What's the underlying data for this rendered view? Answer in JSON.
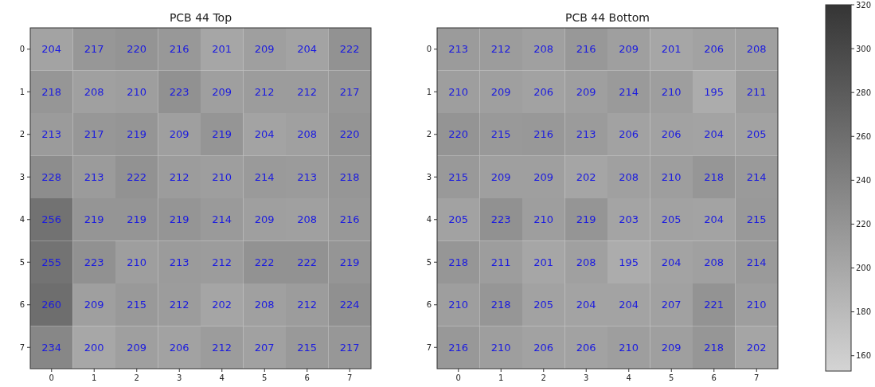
{
  "chart_data": [
    {
      "type": "heatmap",
      "title": "PCB 44 Top",
      "categories": [
        "0",
        "1",
        "2",
        "3",
        "4",
        "5",
        "6",
        "7"
      ],
      "y_categories": [
        "0",
        "1",
        "2",
        "3",
        "4",
        "5",
        "6",
        "7"
      ],
      "cells": [
        [
          204,
          217,
          220,
          216,
          201,
          209,
          204,
          222
        ],
        [
          218,
          208,
          210,
          223,
          209,
          212,
          212,
          217
        ],
        [
          213,
          217,
          219,
          209,
          219,
          204,
          208,
          220
        ],
        [
          228,
          213,
          222,
          212,
          210,
          214,
          213,
          218
        ],
        [
          256,
          219,
          219,
          219,
          214,
          209,
          208,
          216
        ],
        [
          255,
          223,
          210,
          213,
          212,
          222,
          222,
          219
        ],
        [
          260,
          209,
          215,
          212,
          202,
          208,
          212,
          224
        ],
        [
          234,
          200,
          209,
          206,
          212,
          207,
          215,
          217
        ]
      ],
      "data_labels": true
    },
    {
      "type": "heatmap",
      "title": "PCB 44 Bottom",
      "categories": [
        "0",
        "1",
        "2",
        "3",
        "4",
        "5",
        "6",
        "7"
      ],
      "y_categories": [
        "0",
        "1",
        "2",
        "3",
        "4",
        "5",
        "6",
        "7"
      ],
      "cells": [
        [
          213,
          212,
          208,
          216,
          209,
          201,
          206,
          208
        ],
        [
          210,
          209,
          206,
          209,
          214,
          210,
          195,
          211
        ],
        [
          220,
          215,
          216,
          213,
          206,
          206,
          204,
          205
        ],
        [
          215,
          209,
          209,
          202,
          208,
          210,
          218,
          214
        ],
        [
          205,
          223,
          210,
          219,
          203,
          205,
          204,
          215
        ],
        [
          218,
          211,
          201,
          208,
          195,
          204,
          208,
          214
        ],
        [
          210,
          218,
          205,
          204,
          204,
          207,
          221,
          210
        ],
        [
          216,
          210,
          206,
          206,
          210,
          209,
          218,
          202
        ]
      ],
      "clim": [
        153,
        320
      ],
      "cticks": [
        160,
        180,
        200,
        220,
        240,
        260,
        280,
        300,
        320
      ],
      "data_labels": true
    }
  ]
}
